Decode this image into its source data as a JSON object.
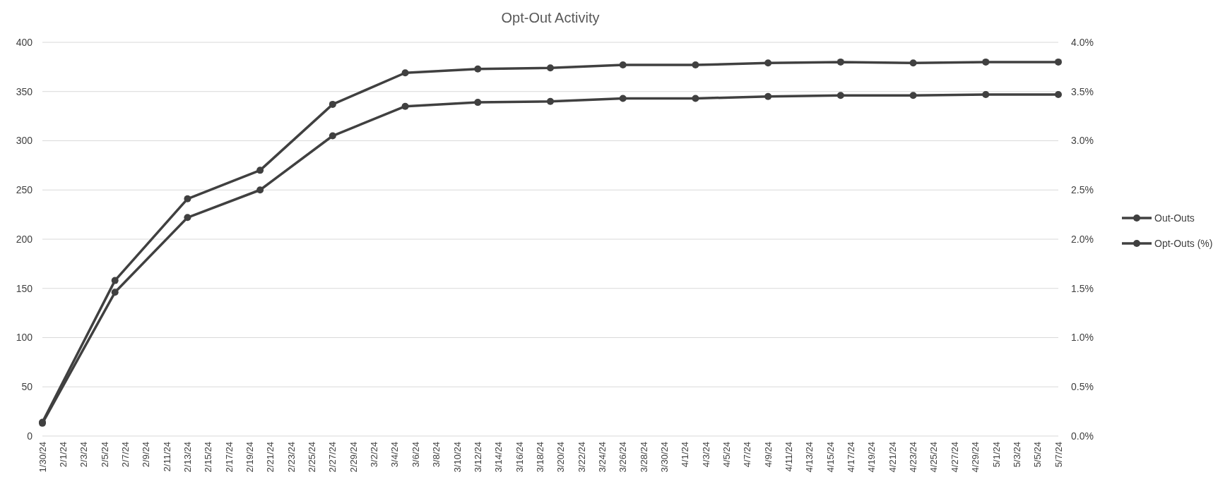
{
  "chart_data": {
    "type": "line",
    "title": "Opt-Out Activity",
    "x": [
      "--01-30",
      "--02-06",
      "--02-13",
      "--02-20",
      "--02-27",
      "--03-05",
      "--03-12",
      "--03-19",
      "--03-26",
      "--04-02",
      "--04-09",
      "--04-16",
      "--04-23",
      "--04-30",
      "--05-07"
    ],
    "series": [
      {
        "name": "Out-Outs",
        "color": "#404040",
        "values": [
          13,
          146,
          222,
          250,
          305,
          335,
          339,
          340,
          343,
          343,
          345,
          346,
          346,
          347,
          347
        ]
      },
      {
        "name": "Opt-Outs (%)",
        "color": "#404040",
        "axis": "y2",
        "values": [
          0.14,
          1.58,
          2.41,
          2.7,
          3.37,
          3.69,
          3.73,
          3.74,
          3.77,
          3.77,
          3.79,
          3.8,
          3.79,
          3.8,
          3.8
        ]
      }
    ],
    "xlim": [
      "--01-30",
      "--05-07"
    ],
    "xticks": [
      {
        "value": "--01-30",
        "label": "1/30/24"
      },
      {
        "value": "--02-01",
        "label": "2/1/24"
      },
      {
        "value": "--02-03",
        "label": "2/3/24"
      },
      {
        "value": "--02-05",
        "label": "2/5/24"
      },
      {
        "value": "--02-07",
        "label": "2/7/24"
      },
      {
        "value": "--02-09",
        "label": "2/9/24"
      },
      {
        "value": "--02-11",
        "label": "2/11/24"
      },
      {
        "value": "--02-13",
        "label": "2/13/24"
      },
      {
        "value": "--02-15",
        "label": "2/15/24"
      },
      {
        "value": "--02-17",
        "label": "2/17/24"
      },
      {
        "value": "--02-19",
        "label": "2/19/24"
      },
      {
        "value": "--02-21",
        "label": "2/21/24"
      },
      {
        "value": "--02-23",
        "label": "2/23/24"
      },
      {
        "value": "--02-25",
        "label": "2/25/24"
      },
      {
        "value": "--02-27",
        "label": "2/27/24"
      },
      {
        "value": "--02-29",
        "label": "2/29/24"
      },
      {
        "value": "--03-02",
        "label": "3/2/24"
      },
      {
        "value": "--03-04",
        "label": "3/4/24"
      },
      {
        "value": "--03-06",
        "label": "3/6/24"
      },
      {
        "value": "--03-08",
        "label": "3/8/24"
      },
      {
        "value": "--03-10",
        "label": "3/10/24"
      },
      {
        "value": "--03-12",
        "label": "3/12/24"
      },
      {
        "value": "--03-14",
        "label": "3/14/24"
      },
      {
        "value": "--03-16",
        "label": "3/16/24"
      },
      {
        "value": "--03-18",
        "label": "3/18/24"
      },
      {
        "value": "--03-20",
        "label": "3/20/24"
      },
      {
        "value": "--03-22",
        "label": "3/22/24"
      },
      {
        "value": "--03-24",
        "label": "3/24/24"
      },
      {
        "value": "--03-26",
        "label": "3/26/24"
      },
      {
        "value": "--03-28",
        "label": "3/28/24"
      },
      {
        "value": "--03-30",
        "label": "3/30/24"
      },
      {
        "value": "--04-01",
        "label": "4/1/24"
      },
      {
        "value": "--04-03",
        "label": "4/3/24"
      },
      {
        "value": "--04-05",
        "label": "4/5/24"
      },
      {
        "value": "--04-07",
        "label": "4/7/24"
      },
      {
        "value": "--04-09",
        "label": "4/9/24"
      },
      {
        "value": "--04-11",
        "label": "4/11/24"
      },
      {
        "value": "--04-13",
        "label": "4/13/24"
      },
      {
        "value": "--04-15",
        "label": "4/15/24"
      },
      {
        "value": "--04-17",
        "label": "4/17/24"
      },
      {
        "value": "--04-19",
        "label": "4/19/24"
      },
      {
        "value": "--04-21",
        "label": "4/21/24"
      },
      {
        "value": "--04-23",
        "label": "4/23/24"
      },
      {
        "value": "--04-25",
        "label": "4/25/24"
      },
      {
        "value": "--04-27",
        "label": "4/27/24"
      },
      {
        "value": "--04-29",
        "label": "4/29/24"
      },
      {
        "value": "--05-01",
        "label": "5/1/24"
      },
      {
        "value": "--05-03",
        "label": "5/3/24"
      },
      {
        "value": "--05-05",
        "label": "5/5/24"
      },
      {
        "value": "--05-07",
        "label": "5/7/24"
      }
    ],
    "ylim": [
      0,
      400
    ],
    "yticks": [
      0,
      50,
      100,
      150,
      200,
      250,
      300,
      350,
      400
    ],
    "y2lim": [
      0,
      4
    ],
    "y2ticks": [
      {
        "value": 0,
        "label": "0.0%"
      },
      {
        "value": 0.5,
        "label": "0.5%"
      },
      {
        "value": 1,
        "label": "1.0%"
      },
      {
        "value": 1.5,
        "label": "1.5%"
      },
      {
        "value": 2,
        "label": "2.0%"
      },
      {
        "value": 2.5,
        "label": "2.5%"
      },
      {
        "value": 3,
        "label": "3.0%"
      },
      {
        "value": 3.5,
        "label": "3.5%"
      },
      {
        "value": 4,
        "label": "4.0%"
      }
    ],
    "grid": "y",
    "legend": "right",
    "marker": "circle",
    "line_style": "solid"
  }
}
